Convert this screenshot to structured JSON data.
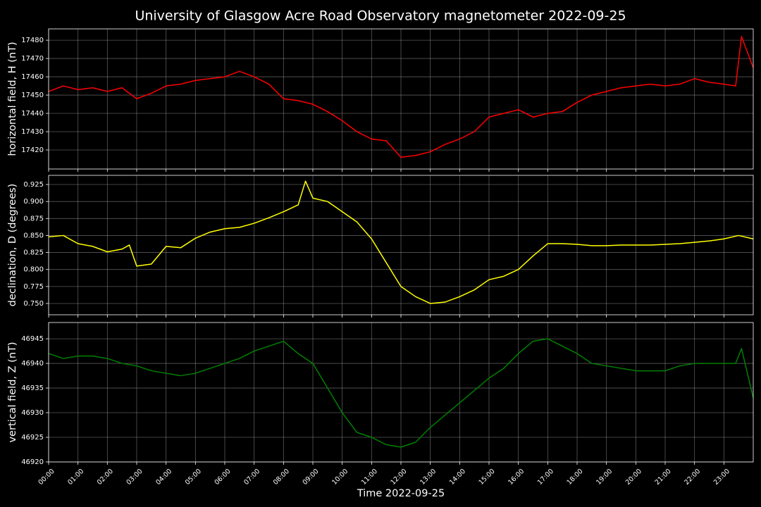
{
  "title": "University of Glasgow Acre Road Observatory magnetometer 2022-09-25",
  "chart_data": [
    {
      "type": "line",
      "ylabel": "horizontal field, H (nT)",
      "color": "#ff0000",
      "grid": true,
      "x": [
        0,
        0.5,
        1,
        1.5,
        2,
        2.5,
        3,
        3.5,
        4,
        4.5,
        5,
        5.5,
        6,
        6.5,
        7,
        7.5,
        8,
        8.5,
        9,
        9.5,
        10,
        10.5,
        11,
        11.5,
        12,
        12.5,
        13,
        13.5,
        14,
        14.5,
        15,
        15.5,
        16,
        16.5,
        17,
        17.5,
        18,
        18.5,
        19,
        19.5,
        20,
        20.5,
        21,
        21.5,
        22,
        22.5,
        23,
        23.4,
        23.6,
        24
      ],
      "values": [
        17452,
        17455,
        17453,
        17454,
        17452,
        17454,
        17448,
        17451,
        17455,
        17456,
        17458,
        17459,
        17460,
        17463,
        17460,
        17456,
        17448,
        17447,
        17445,
        17441,
        17436,
        17430,
        17426,
        17425,
        17416,
        17417,
        17419,
        17423,
        17426,
        17430,
        17438,
        17440,
        17442,
        17438,
        17440,
        17441,
        17446,
        17450,
        17452,
        17454,
        17455,
        17456,
        17455,
        17456,
        17459,
        17457,
        17456,
        17455,
        17482,
        17465
      ],
      "xlim": [
        0,
        24
      ],
      "ylim": [
        17409.6,
        17486.2
      ],
      "yticks": [
        17420,
        17430,
        17440,
        17450,
        17460,
        17470,
        17480
      ]
    },
    {
      "type": "line",
      "ylabel": "declination, D (degrees)",
      "color": "#ffff00",
      "grid": true,
      "x": [
        0,
        0.5,
        1,
        1.5,
        2,
        2.5,
        2.75,
        3,
        3.5,
        4,
        4.5,
        5,
        5.5,
        6,
        6.5,
        7,
        7.5,
        8,
        8.5,
        8.75,
        9,
        9.5,
        10,
        10.5,
        11,
        11.5,
        12,
        12.5,
        13,
        13.5,
        14,
        14.5,
        15,
        15.5,
        16,
        16.5,
        17,
        17.5,
        18,
        18.5,
        19,
        19.5,
        20,
        20.5,
        21,
        21.5,
        22,
        22.5,
        23,
        23.5,
        24
      ],
      "values": [
        0.848,
        0.85,
        0.838,
        0.834,
        0.826,
        0.83,
        0.836,
        0.805,
        0.808,
        0.834,
        0.832,
        0.846,
        0.855,
        0.86,
        0.862,
        0.868,
        0.876,
        0.885,
        0.895,
        0.93,
        0.905,
        0.9,
        0.885,
        0.87,
        0.845,
        0.81,
        0.775,
        0.76,
        0.75,
        0.752,
        0.76,
        0.77,
        0.785,
        0.79,
        0.8,
        0.82,
        0.838,
        0.838,
        0.837,
        0.835,
        0.835,
        0.836,
        0.836,
        0.836,
        0.837,
        0.838,
        0.84,
        0.842,
        0.845,
        0.85,
        0.845
      ],
      "xlim": [
        0,
        24
      ],
      "ylim": [
        0.7334,
        0.9385
      ],
      "yticks": [
        {
          "value": 0.75,
          "label": "0.750"
        },
        0.775,
        {
          "value": 0.8,
          "label": "0.800"
        },
        0.825,
        {
          "value": 0.85,
          "label": "0.850"
        },
        0.875,
        {
          "value": 0.9,
          "label": "0.900"
        },
        0.925
      ]
    },
    {
      "type": "line",
      "ylabel": "vertical field, Z (nT)",
      "xlabel": "Time 2022-09-25",
      "color": "#008000",
      "grid": true,
      "x": [
        0,
        0.5,
        1,
        1.5,
        2,
        2.5,
        3,
        3.5,
        4,
        4.5,
        5,
        5.5,
        6,
        6.5,
        7,
        7.5,
        8,
        8.5,
        9,
        9.5,
        10,
        10.5,
        11,
        11.5,
        12,
        12.5,
        13,
        13.5,
        14,
        14.5,
        15,
        15.5,
        16,
        16.5,
        17,
        17.5,
        18,
        18.5,
        19,
        19.5,
        20,
        20.5,
        21,
        21.5,
        22,
        22.5,
        23,
        23.4,
        23.6,
        24
      ],
      "values": [
        46942,
        46941,
        46941.5,
        46941.5,
        46941,
        46940,
        46939.5,
        46938.5,
        46938,
        46937.5,
        46938,
        46939,
        46940,
        46941,
        46942.5,
        46943.5,
        46944.5,
        46942,
        46940,
        46935,
        46930,
        46926,
        46925,
        46923.5,
        46923,
        46924,
        46927,
        46929.5,
        46932,
        46934.5,
        46937,
        46939,
        46942,
        46944.5,
        46945,
        46943.5,
        46942,
        46940,
        46939.5,
        46939,
        46938.5,
        46938.5,
        46938.5,
        46939.5,
        46940,
        46940,
        46940,
        46940,
        46943,
        46933
      ],
      "xlim": [
        0,
        24
      ],
      "ylim": [
        46920,
        46948.3
      ],
      "yticks": [
        46920,
        46925,
        46930,
        46935,
        46940,
        46945
      ],
      "xticks": [
        {
          "value": 0,
          "label": "00:00"
        },
        {
          "value": 1,
          "label": "01:00"
        },
        {
          "value": 2,
          "label": "02:00"
        },
        {
          "value": 3,
          "label": "03:00"
        },
        {
          "value": 4,
          "label": "04:00"
        },
        {
          "value": 5,
          "label": "05:00"
        },
        {
          "value": 6,
          "label": "06:00"
        },
        {
          "value": 7,
          "label": "07:00"
        },
        {
          "value": 8,
          "label": "08:00"
        },
        {
          "value": 9,
          "label": "09:00"
        },
        {
          "value": 10,
          "label": "10:00"
        },
        {
          "value": 11,
          "label": "11:00"
        },
        {
          "value": 12,
          "label": "12:00"
        },
        {
          "value": 13,
          "label": "13:00"
        },
        {
          "value": 14,
          "label": "14:00"
        },
        {
          "value": 15,
          "label": "15:00"
        },
        {
          "value": 16,
          "label": "16:00"
        },
        {
          "value": 17,
          "label": "17:00"
        },
        {
          "value": 18,
          "label": "18:00"
        },
        {
          "value": 19,
          "label": "19:00"
        },
        {
          "value": 20,
          "label": "20:00"
        },
        {
          "value": 21,
          "label": "21:00"
        },
        {
          "value": 22,
          "label": "22:00"
        },
        {
          "value": 23,
          "label": "23:00"
        }
      ]
    }
  ]
}
